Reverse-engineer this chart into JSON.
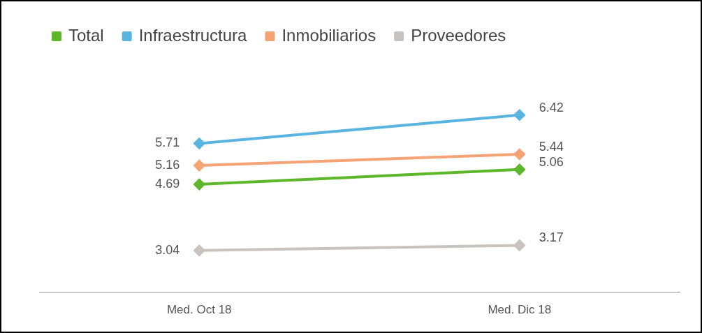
{
  "chart_data": {
    "type": "line",
    "categories": [
      "Med. Oct 18",
      "Med. Dic 18"
    ],
    "series": [
      {
        "name": "Total",
        "color": "#5cb82a",
        "values": [
          4.69,
          5.06
        ]
      },
      {
        "name": "Infraestructura",
        "color": "#5ab4e0",
        "values": [
          5.71,
          6.42
        ]
      },
      {
        "name": "Inmobiliarios",
        "color": "#f4a374",
        "values": [
          5.16,
          5.44
        ]
      },
      {
        "name": "Proveedores",
        "color": "#c8c3be",
        "values": [
          3.04,
          3.17
        ]
      }
    ],
    "relative": false,
    "data_labels": true,
    "legend": "top",
    "grid": false,
    "marker": "diamond",
    "line_style": "solid",
    "tick_labels": "x"
  }
}
